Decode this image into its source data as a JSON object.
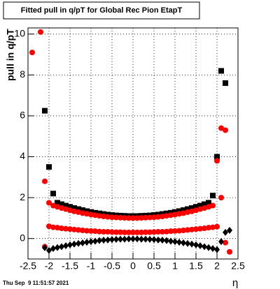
{
  "chart_data": {
    "type": "scatter",
    "title": "Fitted pull in q/pT for Global Rec Pion EtapT",
    "y_label": "pull in q/pT",
    "x_label": "η",
    "footer": "Thu Sep  9 11:51:57 2021",
    "x": [
      -2.4,
      -2.3,
      -2.2,
      -2.1,
      -2.0,
      -1.9,
      -1.8,
      -1.7,
      -1.6,
      -1.5,
      -1.4,
      -1.3,
      -1.2,
      -1.1,
      -1.0,
      -0.9,
      -0.8,
      -0.7,
      -0.6,
      -0.5,
      -0.4,
      -0.3,
      -0.2,
      -0.1,
      0,
      0.1,
      0.2,
      0.3,
      0.4,
      0.5,
      0.6,
      0.7,
      0.8,
      0.9,
      1.0,
      1.1,
      1.2,
      1.3,
      1.4,
      1.5,
      1.6,
      1.7,
      1.8,
      1.9,
      2.0,
      2.1,
      2.2,
      2.3,
      2.4
    ],
    "series": [
      {
        "color": "#000000",
        "marker": "square",
        "values": [
          null,
          null,
          null,
          6.25,
          3.5,
          2.2,
          1.75,
          1.68,
          1.61,
          1.55,
          1.49,
          1.44,
          1.39,
          1.34,
          1.3,
          1.26,
          1.23,
          1.2,
          1.17,
          1.15,
          1.13,
          1.12,
          1.11,
          1.1,
          1.1,
          1.1,
          1.11,
          1.12,
          1.13,
          1.15,
          1.17,
          1.2,
          1.23,
          1.26,
          1.3,
          1.34,
          1.39,
          1.44,
          1.49,
          1.55,
          1.61,
          1.68,
          1.75,
          2.1,
          4.0,
          8.2,
          7.6,
          null,
          null
        ]
      },
      {
        "color": "#ff0000",
        "marker": "circle",
        "values": [
          9.1,
          null,
          10.1,
          2.8,
          1.75,
          1.61,
          1.55,
          1.49,
          1.44,
          1.38,
          1.33,
          1.29,
          1.24,
          1.21,
          1.17,
          1.14,
          1.11,
          1.08,
          1.06,
          1.04,
          1.03,
          1.02,
          1.01,
          1.0,
          1.0,
          1.0,
          1.01,
          1.02,
          1.03,
          1.04,
          1.06,
          1.08,
          1.11,
          1.14,
          1.17,
          1.21,
          1.24,
          1.29,
          1.33,
          1.38,
          1.44,
          1.49,
          1.55,
          1.61,
          3.8,
          5.4,
          5.3,
          -0.65,
          null
        ]
      },
      {
        "color": "#ff0000",
        "marker": "circle",
        "values": [
          null,
          null,
          null,
          -0.4,
          0.6,
          0.55,
          0.53,
          0.5,
          0.48,
          0.46,
          0.44,
          0.42,
          0.4,
          0.38,
          0.37,
          0.36,
          0.34,
          0.33,
          0.33,
          0.32,
          0.31,
          0.31,
          0.3,
          0.3,
          0.3,
          0.3,
          0.3,
          0.31,
          0.31,
          0.32,
          0.33,
          0.33,
          0.34,
          0.36,
          0.37,
          0.38,
          0.4,
          0.42,
          0.44,
          0.46,
          0.48,
          0.5,
          0.53,
          0.55,
          0.58,
          2.0,
          -0.2,
          null,
          null
        ]
      },
      {
        "color": "#000000",
        "marker": "diamond",
        "values": [
          null,
          null,
          null,
          -0.45,
          -0.58,
          -0.49,
          -0.44,
          -0.4,
          -0.35,
          -0.31,
          -0.27,
          -0.24,
          -0.21,
          -0.18,
          -0.15,
          -0.13,
          -0.1,
          -0.08,
          -0.07,
          -0.05,
          -0.04,
          -0.03,
          -0.03,
          -0.02,
          -0.02,
          -0.02,
          -0.03,
          -0.03,
          -0.04,
          -0.05,
          -0.07,
          -0.08,
          -0.1,
          -0.13,
          -0.15,
          -0.18,
          -0.21,
          -0.24,
          -0.27,
          -0.31,
          -0.35,
          -0.4,
          -0.44,
          -0.49,
          -0.54,
          -0.15,
          0.3,
          0.4,
          null
        ]
      }
    ],
    "xlim": [
      -2.5,
      2.5
    ],
    "ylim": [
      -1,
      10.3
    ],
    "xticks": [
      -2.5,
      -2,
      -1.5,
      -1,
      -0.5,
      0,
      0.5,
      1,
      1.5,
      2,
      2.5
    ],
    "yticks": [
      0,
      2,
      4,
      6,
      8,
      10
    ],
    "grid": true
  }
}
